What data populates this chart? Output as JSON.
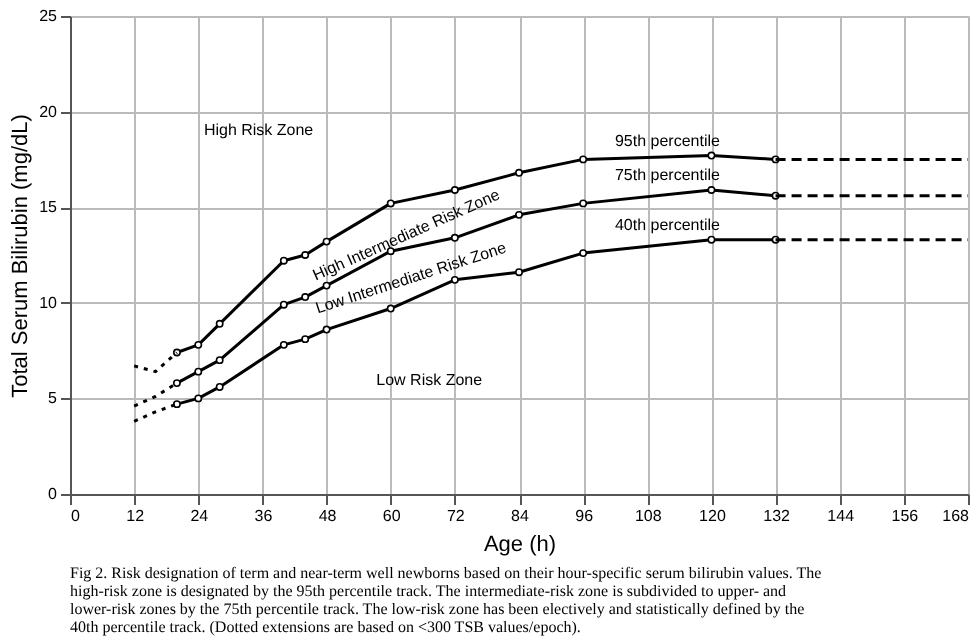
{
  "chart_data": {
    "type": "line",
    "xlabel": "Age (h)",
    "ylabel": "Total Serum Bilirubin (mg/dL)",
    "xlim": [
      0,
      168
    ],
    "xticks": [
      0,
      12,
      24,
      36,
      48,
      60,
      72,
      84,
      96,
      108,
      120,
      132,
      144,
      156,
      168
    ],
    "ylim": [
      0,
      25
    ],
    "yticks": [
      0,
      5,
      10,
      15,
      20,
      25
    ],
    "grid": true,
    "series": [
      {
        "name": "95th percentile",
        "color": "#000000",
        "marker": "circle",
        "line_style": "solid",
        "x": [
          20,
          24,
          28,
          40,
          44,
          48,
          60,
          72,
          84,
          96,
          120,
          132
        ],
        "values": [
          7.4,
          7.8,
          8.9,
          12.2,
          12.5,
          13.2,
          15.2,
          15.9,
          16.8,
          17.5,
          17.7,
          17.5
        ]
      },
      {
        "color": "#000000",
        "marker": "none",
        "line_style": "dotted",
        "x": [
          12,
          16,
          20
        ],
        "values": [
          6.7,
          6.4,
          7.4
        ]
      },
      {
        "color": "#000000",
        "marker": "none",
        "line_style": "dashed",
        "x": [
          132,
          168
        ],
        "values": [
          17.5,
          17.5
        ]
      },
      {
        "name": "75th percentile",
        "color": "#000000",
        "marker": "circle",
        "line_style": "solid",
        "x": [
          20,
          24,
          28,
          40,
          44,
          48,
          60,
          72,
          84,
          96,
          120,
          132
        ],
        "values": [
          5.8,
          6.4,
          7.0,
          9.9,
          10.3,
          10.9,
          12.7,
          13.4,
          14.6,
          15.2,
          15.9,
          15.6
        ]
      },
      {
        "color": "#000000",
        "marker": "none",
        "line_style": "dotted",
        "x": [
          12,
          16,
          20
        ],
        "values": [
          4.6,
          5.1,
          5.8
        ]
      },
      {
        "color": "#000000",
        "marker": "none",
        "line_style": "dashed",
        "x": [
          132,
          168
        ],
        "values": [
          15.6,
          15.6
        ]
      },
      {
        "name": "40th percentile",
        "color": "#000000",
        "marker": "circle",
        "line_style": "solid",
        "x": [
          20,
          24,
          28,
          40,
          44,
          48,
          60,
          72,
          84,
          96,
          120,
          132
        ],
        "values": [
          4.7,
          5.0,
          5.6,
          7.8,
          8.1,
          8.6,
          9.7,
          11.2,
          11.6,
          12.6,
          13.3,
          13.3
        ]
      },
      {
        "color": "#000000",
        "marker": "none",
        "line_style": "dotted",
        "x": [
          12,
          16,
          20
        ],
        "values": [
          3.8,
          4.3,
          4.7
        ]
      },
      {
        "color": "#000000",
        "marker": "none",
        "line_style": "dashed",
        "x": [
          132,
          168
        ],
        "values": [
          13.3,
          13.3
        ]
      }
    ],
    "annotations": [
      "High Risk Zone",
      "High Intermediate Risk Zone",
      "Low Intermediate Risk Zone",
      "Low Risk Zone",
      "Fig 2. Risk designation of term and near-term well newborns based on their hour-specific serum bilirubin values. The high-risk zone is designated by the 95th percentile track. The intermediate-risk zone is subdivided to upper- and lower-risk zones by the 75th percentile track. The low-risk zone has been electively and statistically defined by the 40th percentile track. (Dotted extensions are based on <300 TSB values/epoch)."
    ]
  }
}
